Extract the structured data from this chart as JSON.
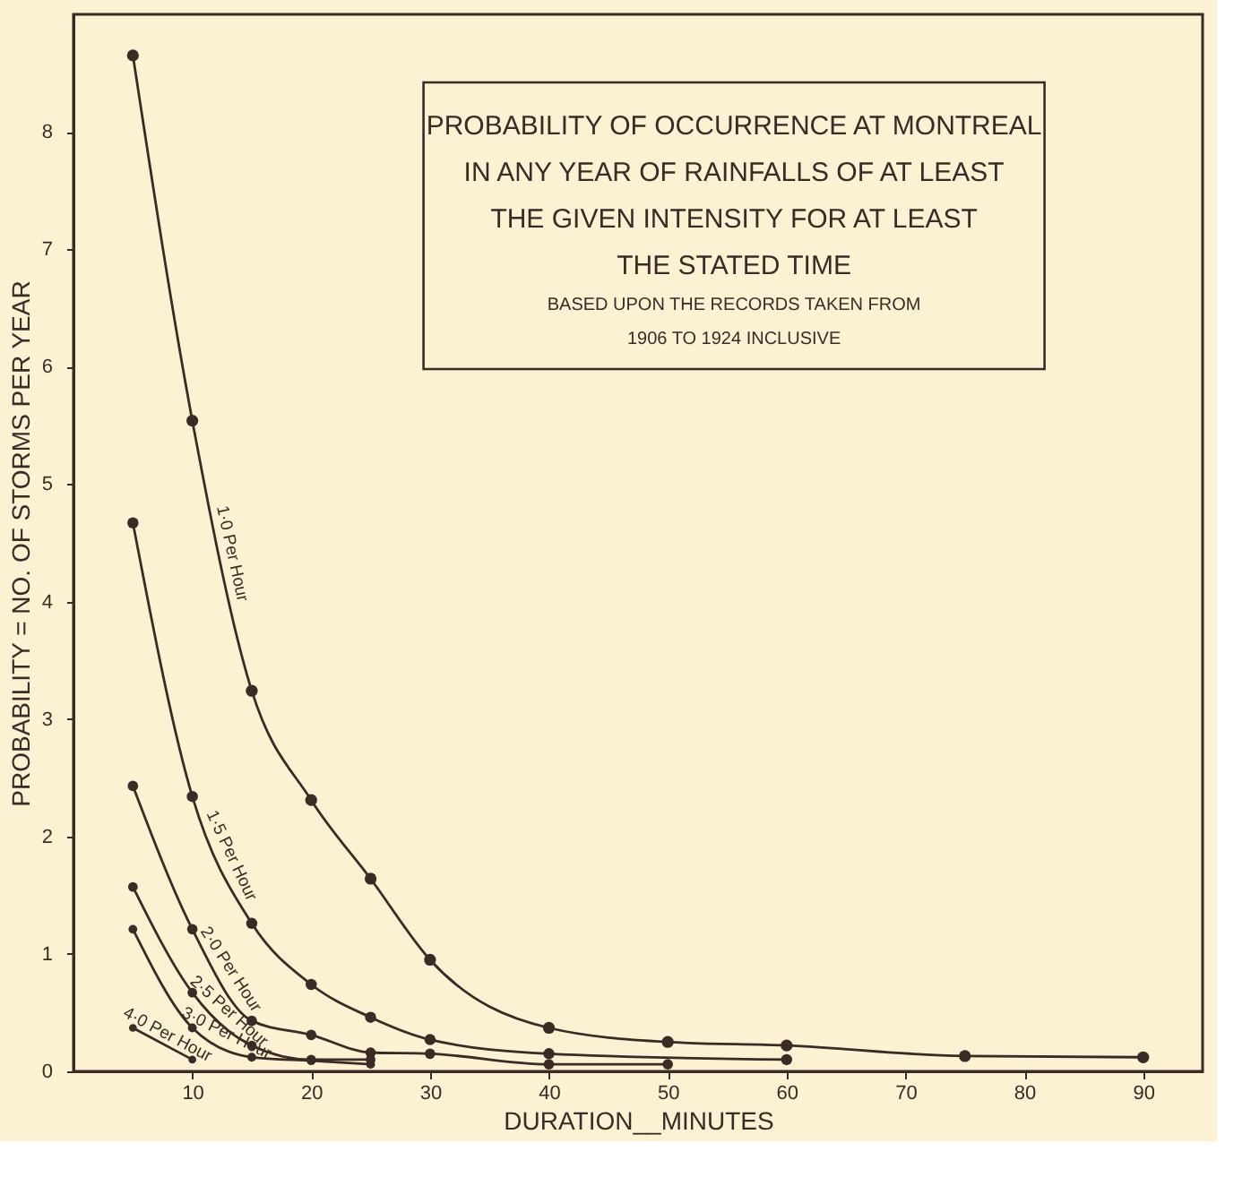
{
  "chart_data": {
    "type": "line",
    "title": [
      "PROBABILITY OF OCCURRENCE AT MONTREAL",
      "IN ANY YEAR OF RAINFALLS OF AT LEAST",
      "THE GIVEN INTENSITY FOR AT LEAST",
      "THE STATED TIME"
    ],
    "subtitle": [
      "BASED UPON THE RECORDS TAKEN FROM",
      "1906 TO 1924 INCLUSIVE"
    ],
    "xlabel": "DURATION__MINUTES",
    "ylabel": "PROBABILITY = NO. OF STORMS PER YEAR",
    "xlim": [
      0,
      95
    ],
    "ylim": [
      0,
      9
    ],
    "xticks": [
      10,
      20,
      30,
      40,
      50,
      60,
      70,
      80,
      90
    ],
    "yticks": [
      0,
      1,
      2,
      3,
      4,
      5,
      6,
      7,
      8
    ],
    "grid": false,
    "marker": "circle",
    "line_style": "solid",
    "series": [
      {
        "name": "1·0 Per Hour",
        "color": "#3a2c24",
        "x": [
          5,
          10,
          15,
          20,
          25,
          30,
          40,
          50,
          60,
          75,
          90
        ],
        "values": [
          8.65,
          5.54,
          3.24,
          2.31,
          1.64,
          0.95,
          0.37,
          0.25,
          0.22,
          0.13,
          0.12
        ]
      },
      {
        "name": "1·5 Per Hour",
        "color": "#3a2c24",
        "x": [
          5,
          10,
          15,
          20,
          25,
          30,
          40,
          60
        ],
        "values": [
          4.67,
          2.34,
          1.26,
          0.74,
          0.46,
          0.27,
          0.15,
          0.1
        ]
      },
      {
        "name": "2·0 Per Hour",
        "color": "#3a2c24",
        "x": [
          5,
          10,
          15,
          20,
          25,
          30,
          40,
          50
        ],
        "values": [
          2.43,
          1.21,
          0.43,
          0.31,
          0.16,
          0.15,
          0.06,
          0.06
        ]
      },
      {
        "name": "2·5 Per Hour",
        "color": "#3a2c24",
        "x": [
          5,
          10,
          15,
          20,
          25
        ],
        "values": [
          1.57,
          0.67,
          0.22,
          0.1,
          0.1
        ]
      },
      {
        "name": "3·0 Per Hour",
        "color": "#3a2c24",
        "x": [
          5,
          10,
          15,
          20,
          25
        ],
        "values": [
          1.21,
          0.37,
          0.12,
          0.09,
          0.06
        ]
      },
      {
        "name": "4·0 Per Hour",
        "color": "#3a2c24",
        "x": [
          5,
          10
        ],
        "values": [
          0.37,
          0.1
        ]
      }
    ]
  }
}
